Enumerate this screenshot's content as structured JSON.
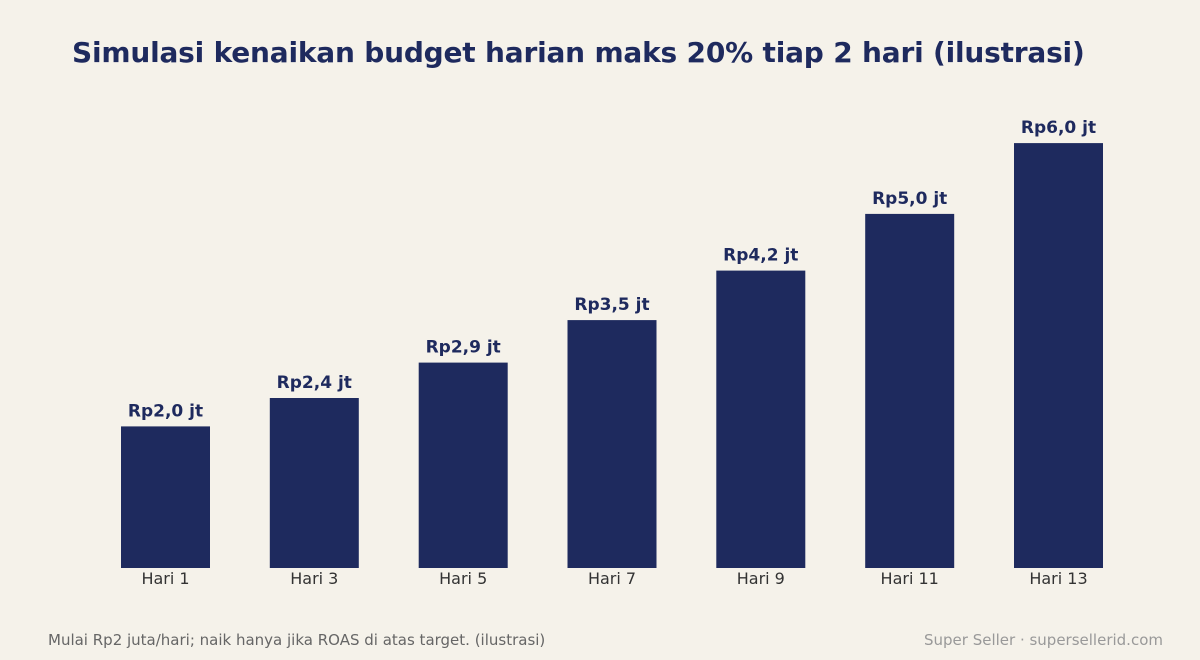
{
  "chart_data": {
    "type": "bar",
    "title": "Simulasi kenaikan budget harian maks 20% tiap 2 hari (ilustrasi)",
    "categories": [
      "Hari 1",
      "Hari 3",
      "Hari 5",
      "Hari 7",
      "Hari 9",
      "Hari 11",
      "Hari 13"
    ],
    "values": [
      2.0,
      2.4,
      2.9,
      3.5,
      4.2,
      5.0,
      6.0
    ],
    "value_labels": [
      "Rp2,0 jt",
      "Rp2,4 jt",
      "Rp2,9 jt",
      "Rp3,5 jt",
      "Rp4,2 jt",
      "Rp5,0 jt",
      "Rp6,0 jt"
    ],
    "xlabel": "",
    "ylabel": "",
    "ylim": [
      0,
      6.75
    ],
    "grid": false,
    "bar_color": "#1E2A5E"
  },
  "footer": {
    "note": "Mulai Rp2 juta/hari; naik hanya jika ROAS di atas target. (ilustrasi)",
    "credit": "Super Seller · supersellerid.com"
  }
}
